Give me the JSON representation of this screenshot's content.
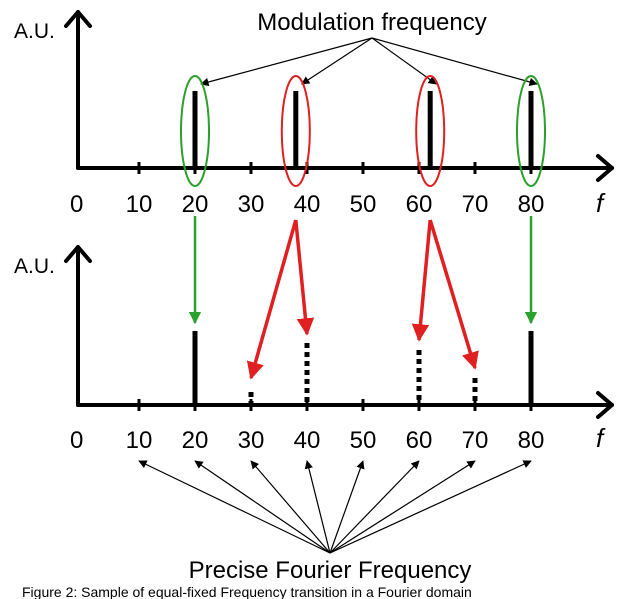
{
  "top_panel": {
    "y_label": "A.U.",
    "x_label": "f",
    "tick_labels": [
      "0",
      "10",
      "20",
      "30",
      "40",
      "50",
      "60",
      "70",
      "80"
    ],
    "annotation": "Modulation frequency",
    "peaks": [
      {
        "f": 20,
        "ring_color": "#2ca02c"
      },
      {
        "f": 38,
        "ring_color": "#e02020"
      },
      {
        "f": 62,
        "ring_color": "#e02020"
      },
      {
        "f": 80,
        "ring_color": "#2ca02c"
      }
    ]
  },
  "bottom_panel": {
    "y_label": "A.U.",
    "x_label": "f",
    "tick_labels": [
      "0",
      "10",
      "20",
      "30",
      "40",
      "50",
      "60",
      "70",
      "80"
    ],
    "annotation": "Precise Fourier Frequency",
    "solid_bins": [
      20,
      80
    ],
    "dotted_bins": [
      30,
      40,
      60,
      70
    ]
  },
  "mapping_arrows": [
    {
      "from": 20,
      "to": 20,
      "color": "#2ca02c"
    },
    {
      "from": 38,
      "to": 30,
      "color": "#e02020"
    },
    {
      "from": 38,
      "to": 40,
      "color": "#e02020"
    },
    {
      "from": 62,
      "to": 60,
      "color": "#e02020"
    },
    {
      "from": 62,
      "to": 70,
      "color": "#e02020"
    },
    {
      "from": 80,
      "to": 80,
      "color": "#2ca02c"
    }
  ],
  "caption": "Figure 2: Sample of equal-fixed Frequency transition in a Fourier domain"
}
